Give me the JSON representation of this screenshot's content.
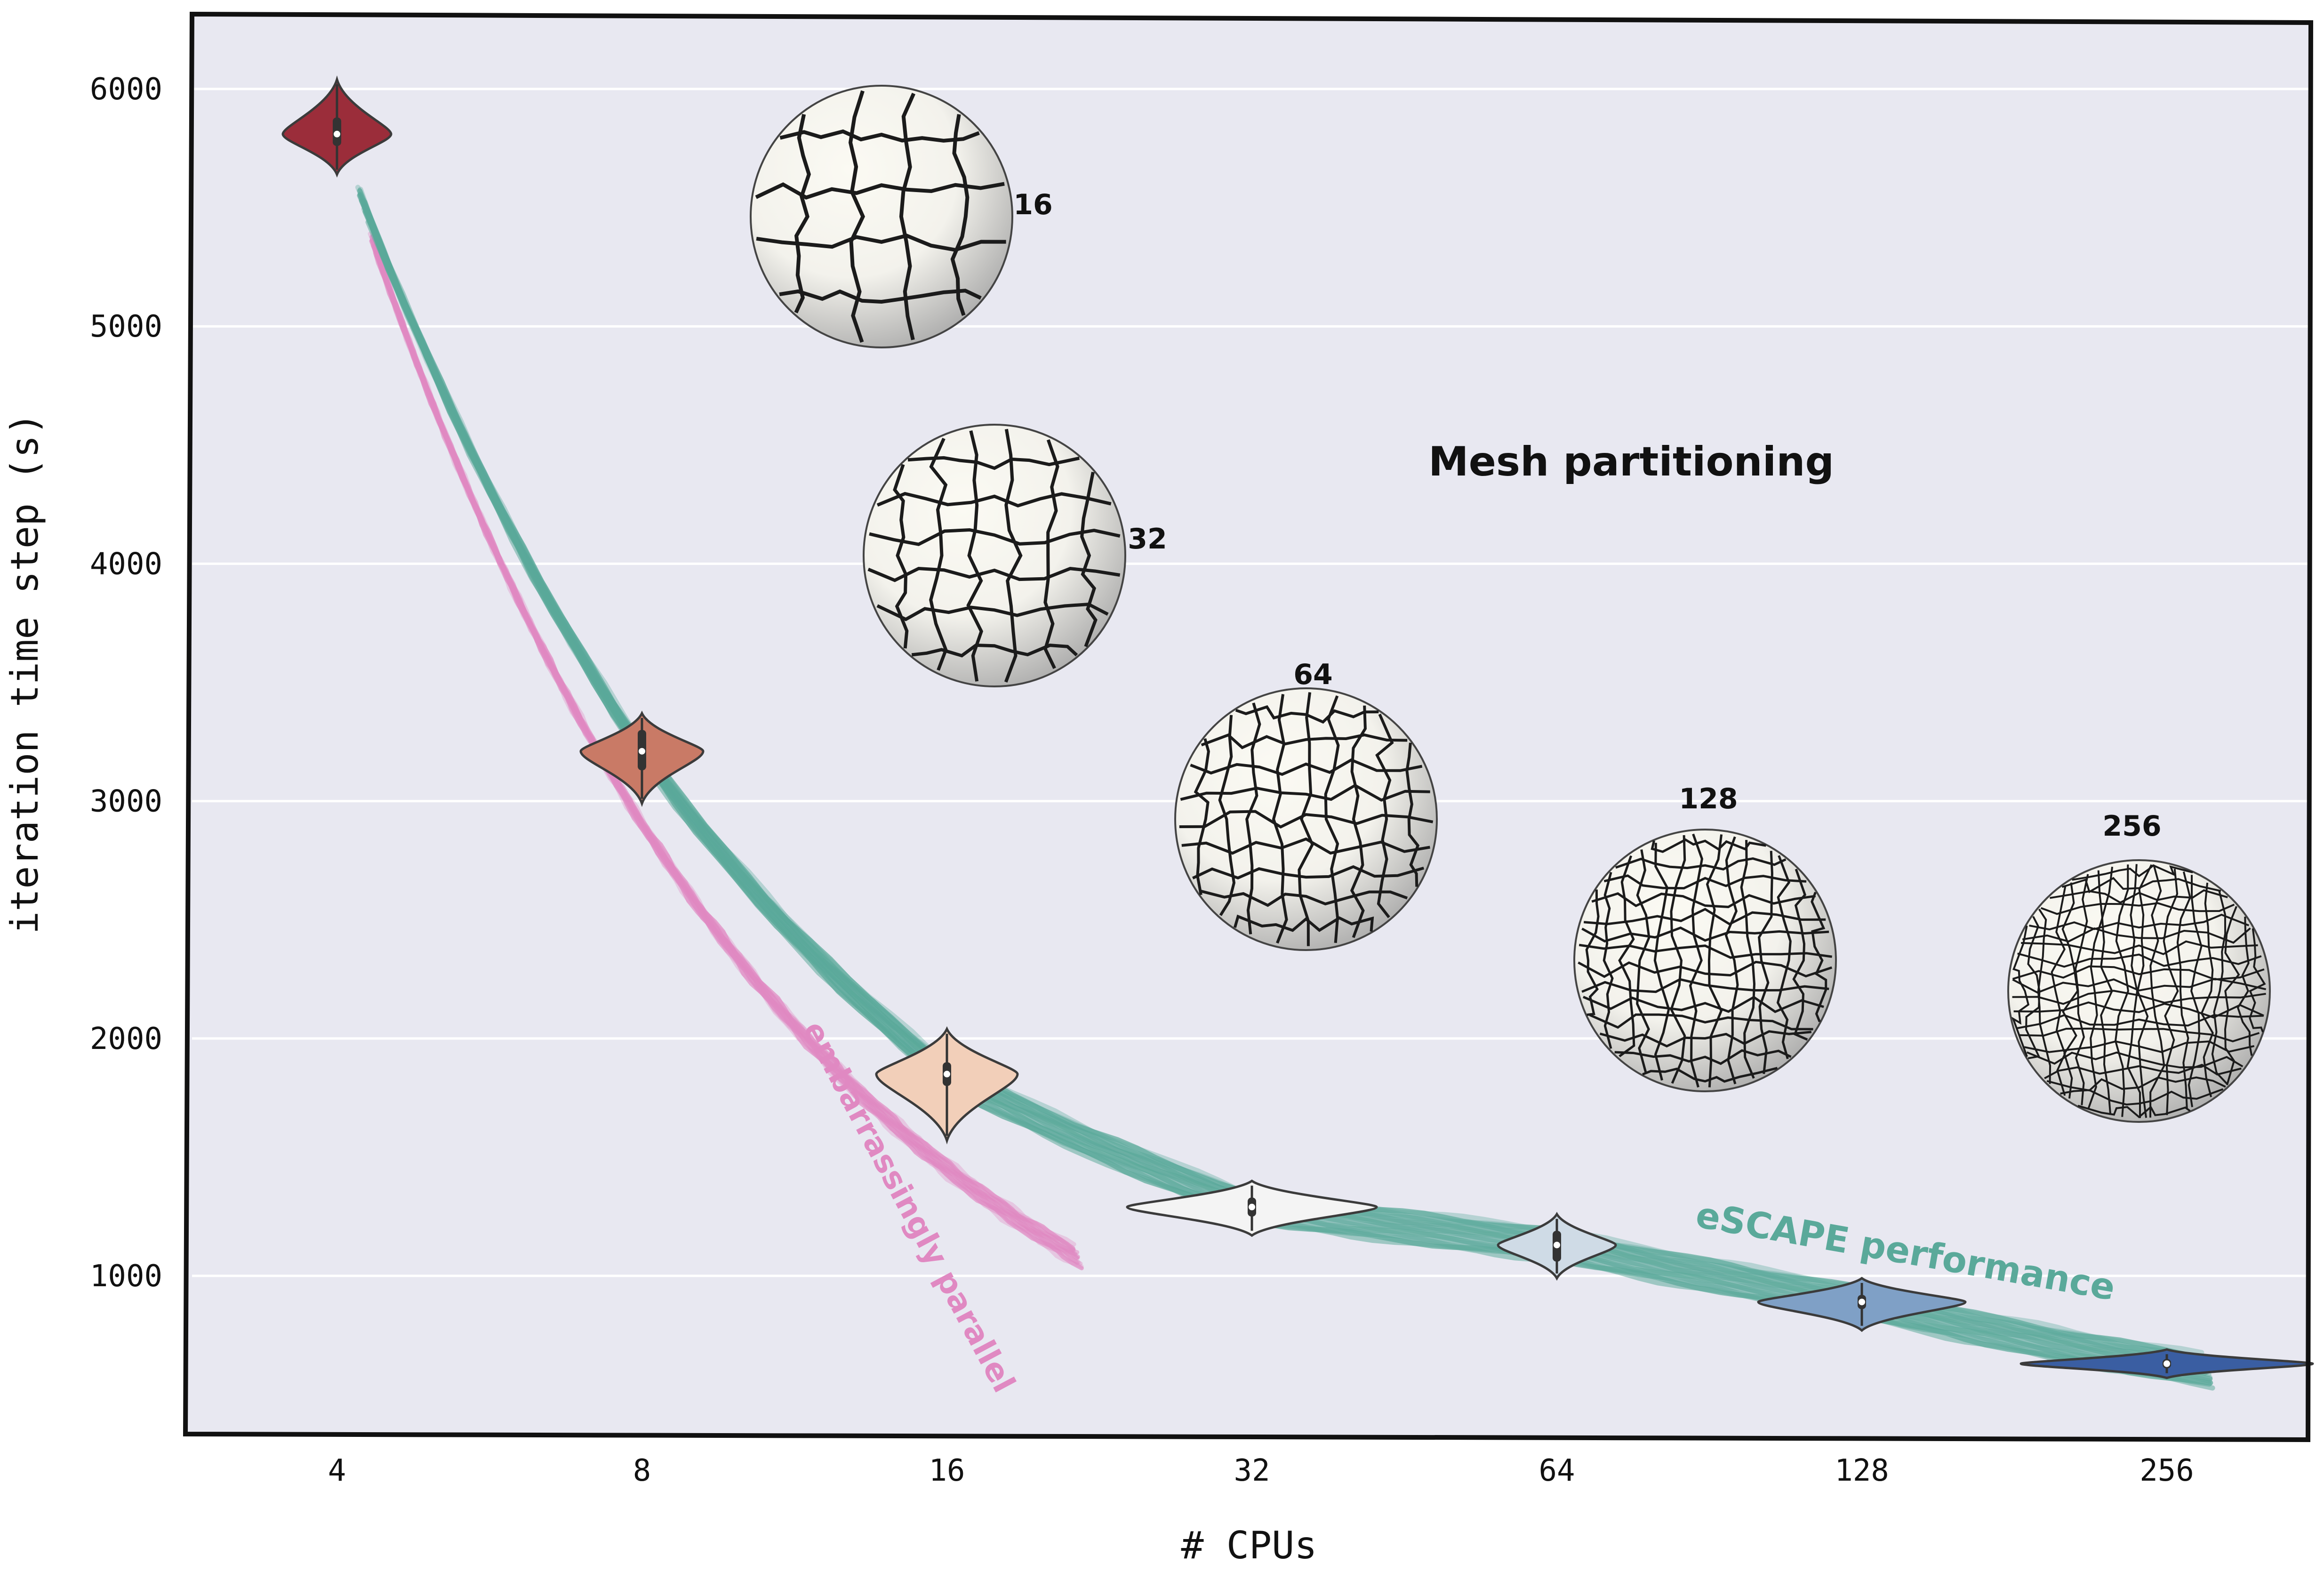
{
  "chart_data": {
    "type": "violin",
    "xlabel": "# CPUs",
    "ylabel": "iteration time step (s)",
    "x_scale": "log2",
    "categories": [
      "4",
      "8",
      "16",
      "32",
      "64",
      "128",
      "256"
    ],
    "x_values": [
      4,
      8,
      16,
      32,
      64,
      128,
      256
    ],
    "y_ticks": [
      "1000",
      "2000",
      "3000",
      "4000",
      "5000",
      "6000"
    ],
    "y_tick_values": [
      1000,
      2000,
      3000,
      4000,
      5000,
      6000
    ],
    "ylim": [
      340,
      6300
    ],
    "grid": "horizontal",
    "violins": [
      {
        "cpus": 4,
        "median": 5810,
        "q1": 5760,
        "q3": 5880,
        "min": 5640,
        "max": 6040,
        "color": "#9b2d3a"
      },
      {
        "cpus": 8,
        "median": 3210,
        "q1": 3130,
        "q3": 3300,
        "min": 2990,
        "max": 3370,
        "color": "#c97a66"
      },
      {
        "cpus": 16,
        "median": 1850,
        "q1": 1800,
        "q3": 1900,
        "min": 1570,
        "max": 2040,
        "color": "#f2cfb9"
      },
      {
        "cpus": 32,
        "median": 1290,
        "q1": 1250,
        "q3": 1330,
        "min": 1170,
        "max": 1400,
        "color": "#f4f4f4"
      },
      {
        "cpus": 64,
        "median": 1130,
        "q1": 1060,
        "q3": 1190,
        "min": 990,
        "max": 1260,
        "color": "#cfdbe6"
      },
      {
        "cpus": 128,
        "median": 890,
        "q1": 860,
        "q3": 920,
        "min": 770,
        "max": 990,
        "color": "#7fa0c6"
      },
      {
        "cpus": 256,
        "median": 630,
        "q1": 610,
        "q3": 650,
        "min": 570,
        "max": 690,
        "color": "#3a5ea2"
      }
    ],
    "series": [
      {
        "name": "eSCAPE performance",
        "color": "#5aa99a",
        "x": [
          4,
          8,
          16,
          32,
          64,
          128,
          256
        ],
        "values": [
          5810,
          3210,
          1850,
          1290,
          1130,
          890,
          630
        ]
      },
      {
        "name": "embarrassingly parallel",
        "color": "#e089c2",
        "x": [
          4,
          8,
          16
        ],
        "values": [
          5810,
          2905,
          1452
        ]
      }
    ],
    "annotations": [
      {
        "text": "Mesh partitioning"
      },
      {
        "text": "eSCAPE performance",
        "color": "#5aa99a"
      },
      {
        "text": "embarrassingly parallel",
        "color": "#e089c2"
      }
    ],
    "mesh_spheres": [
      {
        "label": "16",
        "partitions": 16
      },
      {
        "label": "32",
        "partitions": 32
      },
      {
        "label": "64",
        "partitions": 64
      },
      {
        "label": "128",
        "partitions": 128
      },
      {
        "label": "256",
        "partitions": 256
      }
    ]
  }
}
